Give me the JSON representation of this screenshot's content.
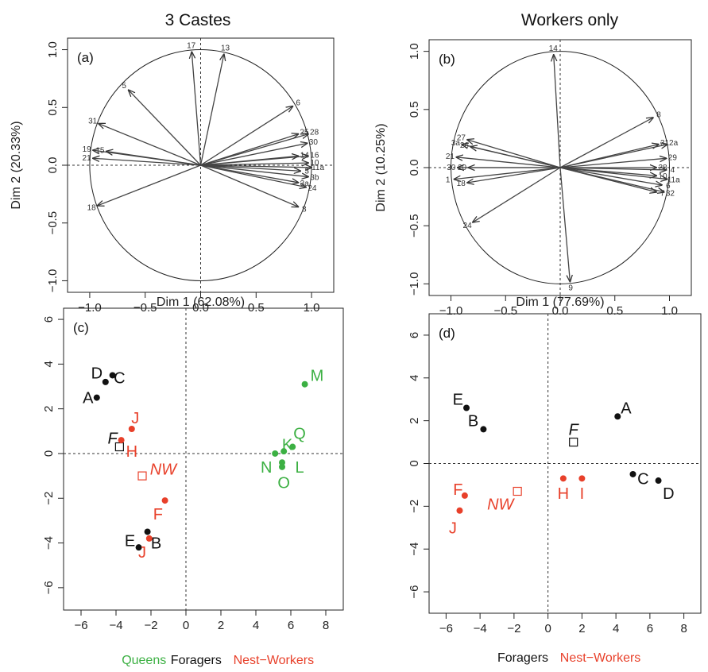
{
  "colors": {
    "queens": "#3cb043",
    "foragers": "#111111",
    "nest_workers": "#e8402a"
  },
  "chart_data": [
    {
      "id": "a",
      "type": "scatter",
      "subtype": "correlation-circle",
      "title": "3 Castes",
      "panel_label": "(a)",
      "xlabel": "Dim 1 (62.08%)",
      "ylabel": "Dim 2 (20.33%)",
      "xlim": [
        -1.2,
        1.2
      ],
      "ylim": [
        -1.1,
        1.1
      ],
      "xticks": [
        "−1.0",
        "−0.5",
        "0.0",
        "0.5",
        "1.0"
      ],
      "yticks": [
        "−1.0",
        "−0.5",
        "0.0",
        "0.5",
        "1.0"
      ],
      "xtick_values": [
        -1,
        -0.5,
        0,
        0.5,
        1
      ],
      "ytick_values": [
        -1,
        -0.5,
        0,
        0.5,
        1
      ],
      "vectors": [
        {
          "label": "17",
          "x": -0.08,
          "y": 0.98
        },
        {
          "label": "13",
          "x": 0.21,
          "y": 0.96
        },
        {
          "label": "5",
          "x": -0.65,
          "y": 0.65
        },
        {
          "label": "31",
          "x": -0.92,
          "y": 0.36
        },
        {
          "label": "19",
          "x": -0.97,
          "y": 0.13
        },
        {
          "label": "15",
          "x": -0.85,
          "y": 0.12
        },
        {
          "label": "21",
          "x": -0.97,
          "y": 0.06
        },
        {
          "label": "18",
          "x": -0.93,
          "y": -0.35
        },
        {
          "label": "6",
          "x": 0.83,
          "y": 0.51
        },
        {
          "label": "25",
          "x": 0.88,
          "y": 0.27
        },
        {
          "label": "28",
          "x": 0.97,
          "y": 0.27
        },
        {
          "label": "30",
          "x": 0.96,
          "y": 0.19
        },
        {
          "label": "14",
          "x": 0.88,
          "y": 0.08
        },
        {
          "label": "16",
          "x": 0.97,
          "y": 0.08
        },
        {
          "label": "10",
          "x": 0.97,
          "y": 0.02
        },
        {
          "label": "11a",
          "x": 1.0,
          "y": -0.02
        },
        {
          "label": "3",
          "x": 0.9,
          "y": -0.05
        },
        {
          "label": "3b",
          "x": 0.97,
          "y": -0.1
        },
        {
          "label": "3a",
          "x": 0.88,
          "y": -0.15
        },
        {
          "label": "24",
          "x": 0.95,
          "y": -0.19
        },
        {
          "label": "8",
          "x": 0.88,
          "y": -0.36
        }
      ]
    },
    {
      "id": "b",
      "type": "scatter",
      "subtype": "correlation-circle",
      "title": "Workers only",
      "panel_label": "(b)",
      "xlabel": "Dim 1 (77.69%)",
      "ylabel": "Dim 2 (10.25%)",
      "xlim": [
        -1.2,
        1.2
      ],
      "ylim": [
        -1.1,
        1.1
      ],
      "xticks": [
        "−1.0",
        "−0.5",
        "0.0",
        "0.5",
        "1.0"
      ],
      "yticks": [
        "−1.0",
        "−0.5",
        "0.0",
        "0.5",
        "1.0"
      ],
      "xtick_values": [
        -1,
        -0.5,
        0,
        0.5,
        1
      ],
      "ytick_values": [
        -1,
        -0.5,
        0,
        0.5,
        1
      ],
      "vectors": [
        {
          "label": "14",
          "x": -0.06,
          "y": 0.97
        },
        {
          "label": "9",
          "x": 0.09,
          "y": -0.98
        },
        {
          "label": "8",
          "x": 0.85,
          "y": 0.43
        },
        {
          "label": "27",
          "x": -0.85,
          "y": 0.24
        },
        {
          "label": "3a",
          "x": -0.9,
          "y": 0.2
        },
        {
          "label": "26",
          "x": -0.82,
          "y": 0.18
        },
        {
          "label": "21",
          "x": -0.95,
          "y": 0.09
        },
        {
          "label": "30",
          "x": -0.94,
          "y": 0.0
        },
        {
          "label": "20",
          "x": -0.84,
          "y": 0.0
        },
        {
          "label": "1",
          "x": -0.97,
          "y": -0.1
        },
        {
          "label": "18",
          "x": -0.85,
          "y": -0.13
        },
        {
          "label": "24",
          "x": -0.8,
          "y": -0.47
        },
        {
          "label": "31",
          "x": 0.9,
          "y": 0.2
        },
        {
          "label": "2a",
          "x": 0.98,
          "y": 0.2
        },
        {
          "label": "29",
          "x": 0.97,
          "y": 0.08
        },
        {
          "label": "28",
          "x": 0.88,
          "y": 0.0
        },
        {
          "label": "4",
          "x": 0.97,
          "y": -0.02
        },
        {
          "label": "10",
          "x": 0.88,
          "y": -0.07
        },
        {
          "label": "11a",
          "x": 0.98,
          "y": -0.1
        },
        {
          "label": "6",
          "x": 0.93,
          "y": -0.15
        },
        {
          "label": "7",
          "x": 0.88,
          "y": -0.21
        },
        {
          "label": "32",
          "x": 0.95,
          "y": -0.21
        }
      ]
    },
    {
      "id": "c",
      "type": "scatter",
      "subtype": "individuals",
      "panel_label": "(c)",
      "xlim": [
        -7,
        9
      ],
      "ylim": [
        -7,
        6.5
      ],
      "xticks": [
        "−6",
        "−4",
        "−2",
        "0",
        "2",
        "4",
        "6",
        "8"
      ],
      "yticks": [
        "−6",
        "−4",
        "−2",
        "0",
        "2",
        "4",
        "6"
      ],
      "xtick_values": [
        -6,
        -4,
        -2,
        0,
        2,
        4,
        6,
        8
      ],
      "ytick_values": [
        -6,
        -4,
        -2,
        0,
        2,
        4,
        6
      ],
      "points": [
        {
          "label": "D",
          "x": -4.6,
          "y": 3.2,
          "group": "foragers",
          "marker": "dot",
          "lx": -5.1,
          "ly": 3.6
        },
        {
          "label": "C",
          "x": -4.2,
          "y": 3.5,
          "group": "foragers",
          "marker": "dot",
          "lx": -3.8,
          "ly": 3.4
        },
        {
          "label": "A",
          "x": -5.1,
          "y": 2.5,
          "group": "foragers",
          "marker": "dot",
          "lx": -5.6,
          "ly": 2.5
        },
        {
          "label": "F",
          "x": -3.8,
          "y": 0.3,
          "group": "foragers",
          "marker": "square",
          "italic": true,
          "lx": -4.2,
          "ly": 0.7
        },
        {
          "label": "E",
          "x": -2.7,
          "y": -4.2,
          "group": "foragers",
          "marker": "dot",
          "lx": -3.2,
          "ly": -3.9
        },
        {
          "label": "B",
          "x": -2.2,
          "y": -3.5,
          "group": "foragers",
          "marker": "dot",
          "lx": -1.7,
          "ly": -4.0
        },
        {
          "label": "J",
          "x": -3.1,
          "y": 1.1,
          "group": "nest_workers",
          "marker": "dot",
          "lx": -2.9,
          "ly": 1.6
        },
        {
          "label": "H",
          "x": -3.7,
          "y": 0.6,
          "group": "nest_workers",
          "marker": "dot",
          "lx": -3.1,
          "ly": 0.1
        },
        {
          "label": "NW",
          "x": -2.5,
          "y": -1.0,
          "group": "nest_workers",
          "marker": "square",
          "italic": true,
          "lx": -1.3,
          "ly": -0.7
        },
        {
          "label": "F",
          "x": -1.2,
          "y": -2.1,
          "group": "nest_workers",
          "marker": "dot",
          "lx": -1.6,
          "ly": -2.7
        },
        {
          "label": "J",
          "x": -2.1,
          "y": -3.8,
          "group": "nest_workers",
          "marker": "dot",
          "lx": -2.5,
          "ly": -4.4
        },
        {
          "label": "M",
          "x": 6.8,
          "y": 3.1,
          "group": "queens",
          "marker": "dot",
          "lx": 7.5,
          "ly": 3.5
        },
        {
          "label": "Q",
          "x": 6.1,
          "y": 0.3,
          "group": "queens",
          "marker": "dot",
          "lx": 6.5,
          "ly": 0.9
        },
        {
          "label": "K",
          "x": 5.6,
          "y": 0.1,
          "group": "queens",
          "marker": "dot",
          "lx": 5.8,
          "ly": 0.4
        },
        {
          "label": "N",
          "x": 5.1,
          "y": 0.0,
          "group": "queens",
          "marker": "dot",
          "lx": 4.6,
          "ly": -0.6
        },
        {
          "label": "L",
          "x": 5.5,
          "y": -0.4,
          "group": "queens",
          "marker": "dot",
          "lx": 6.5,
          "ly": -0.6
        },
        {
          "label": "O",
          "x": 5.5,
          "y": -0.6,
          "group": "queens",
          "marker": "dot",
          "lx": 5.6,
          "ly": -1.3
        }
      ],
      "legend": [
        {
          "label": "Queens",
          "group": "queens"
        },
        {
          "label": "Foragers",
          "group": "foragers"
        },
        {
          "label": "Nest−Workers",
          "group": "nest_workers"
        }
      ]
    },
    {
      "id": "d",
      "type": "scatter",
      "subtype": "individuals",
      "panel_label": "(d)",
      "xlim": [
        -7,
        9
      ],
      "ylim": [
        -7,
        7
      ],
      "xticks": [
        "−6",
        "−4",
        "−2",
        "0",
        "2",
        "4",
        "6",
        "8"
      ],
      "yticks": [
        "−6",
        "−4",
        "−2",
        "0",
        "2",
        "4",
        "6"
      ],
      "xtick_values": [
        -6,
        -4,
        -2,
        0,
        2,
        4,
        6,
        8
      ],
      "ytick_values": [
        -6,
        -4,
        -2,
        0,
        2,
        4,
        6
      ],
      "points": [
        {
          "label": "E",
          "x": -4.8,
          "y": 2.6,
          "group": "foragers",
          "marker": "dot",
          "lx": -5.3,
          "ly": 3.0
        },
        {
          "label": "B",
          "x": -3.8,
          "y": 1.6,
          "group": "foragers",
          "marker": "dot",
          "lx": -4.4,
          "ly": 2.0
        },
        {
          "label": "A",
          "x": 4.1,
          "y": 2.2,
          "group": "foragers",
          "marker": "dot",
          "lx": 4.6,
          "ly": 2.6
        },
        {
          "label": "F",
          "x": 1.5,
          "y": 1.0,
          "group": "foragers",
          "marker": "square",
          "italic": true,
          "lx": 1.5,
          "ly": 1.6
        },
        {
          "label": "C",
          "x": 5.0,
          "y": -0.5,
          "group": "foragers",
          "marker": "dot",
          "lx": 5.6,
          "ly": -0.7
        },
        {
          "label": "D",
          "x": 6.5,
          "y": -0.8,
          "group": "foragers",
          "marker": "dot",
          "lx": 7.1,
          "ly": -1.4
        },
        {
          "label": "H",
          "x": 0.9,
          "y": -0.7,
          "group": "nest_workers",
          "marker": "dot",
          "lx": 0.9,
          "ly": -1.4
        },
        {
          "label": "I",
          "x": 2.0,
          "y": -0.7,
          "group": "nest_workers",
          "marker": "dot",
          "lx": 2.0,
          "ly": -1.4
        },
        {
          "label": "NW",
          "x": -1.8,
          "y": -1.3,
          "group": "nest_workers",
          "marker": "square",
          "italic": true,
          "lx": -2.8,
          "ly": -1.9
        },
        {
          "label": "F",
          "x": -4.9,
          "y": -1.5,
          "group": "nest_workers",
          "marker": "dot",
          "lx": -5.3,
          "ly": -1.2
        },
        {
          "label": "J",
          "x": -5.2,
          "y": -2.2,
          "group": "nest_workers",
          "marker": "dot",
          "lx": -5.6,
          "ly": -3.0
        }
      ],
      "legend": [
        {
          "label": "Foragers",
          "group": "foragers"
        },
        {
          "label": "Nest−Workers",
          "group": "nest_workers"
        }
      ]
    }
  ]
}
